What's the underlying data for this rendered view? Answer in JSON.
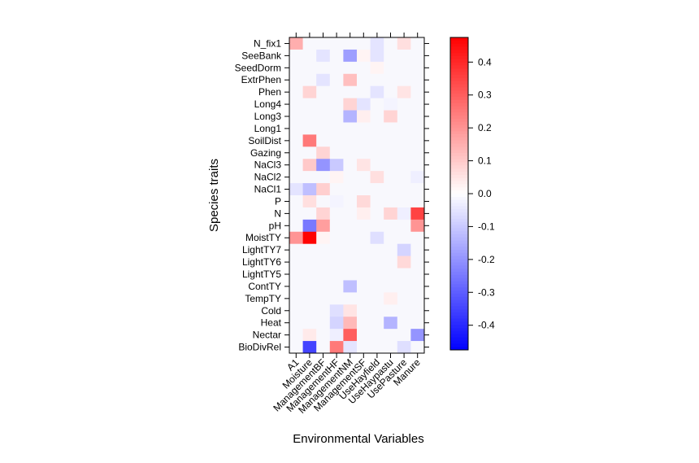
{
  "chart_data": {
    "type": "heatmap",
    "title": "",
    "xlabel": "Environmental Variables",
    "ylabel": "Species traits",
    "x_categories": [
      "A1",
      "Moisture",
      "ManagementBF",
      "ManagementHF",
      "ManagementNM",
      "ManagementSF",
      "UseHayfield",
      "UseHaypastu",
      "UsePasture",
      "Manure"
    ],
    "y_categories": [
      "N_fix1",
      "SeeBank",
      "SeedDorm",
      "ExtrPhen",
      "Phen",
      "Long4",
      "Long3",
      "Long1",
      "SoilDist",
      "Gazing",
      "NaCl3",
      "NaCl2",
      "NaCl1",
      "P",
      "N",
      "pH",
      "MoistTY",
      "LightTY7",
      "LightTY6",
      "LightTY5",
      "ContTY",
      "TempTY",
      "Cold",
      "Heat",
      "Nectar",
      "BioDivRel"
    ],
    "zlim": [
      -0.475,
      0.475
    ],
    "colorbar_ticks": [
      0.4,
      0.3,
      0.2,
      0.1,
      0.0,
      -0.1,
      -0.2,
      -0.3,
      -0.4
    ],
    "colorbar_tick_labels": [
      "0.4",
      "0.3",
      "0.2",
      "0.1",
      "0.0",
      "-0.1",
      "-0.2",
      "-0.3",
      "-0.4"
    ],
    "colors": {
      "low": "#0000ff",
      "mid": "#ffffff",
      "high": "#ff0000",
      "zero_cell": "#f8f8fd"
    },
    "values": [
      [
        0.15,
        0,
        0,
        0,
        0,
        0,
        -0.05,
        0,
        0.06,
        0
      ],
      [
        0,
        0,
        -0.05,
        0,
        -0.18,
        0.02,
        -0.05,
        0,
        0,
        0
      ],
      [
        0,
        0,
        0,
        0,
        0,
        0,
        0.02,
        0,
        0,
        0
      ],
      [
        0,
        0,
        -0.05,
        0,
        0.12,
        0,
        0,
        0,
        0,
        0
      ],
      [
        0,
        0.08,
        0,
        0,
        0,
        0,
        -0.05,
        0,
        0.05,
        0
      ],
      [
        0,
        0,
        0,
        0,
        0.08,
        -0.05,
        0,
        -0.02,
        0,
        0
      ],
      [
        0,
        0,
        0,
        0,
        -0.14,
        0.03,
        0,
        0.08,
        0,
        0
      ],
      [
        0,
        0,
        0,
        0,
        0,
        0,
        0,
        0,
        0,
        0
      ],
      [
        0,
        0.25,
        0,
        0,
        0,
        0,
        0,
        0,
        0,
        0
      ],
      [
        0,
        0,
        0.08,
        0,
        0,
        0,
        0,
        0,
        0,
        0
      ],
      [
        0,
        0.1,
        -0.2,
        -0.1,
        0,
        0.05,
        0,
        0,
        0,
        0
      ],
      [
        0,
        0,
        0,
        0.02,
        0,
        0,
        0.06,
        0,
        0,
        -0.03
      ],
      [
        -0.05,
        -0.12,
        0.09,
        0,
        0,
        0,
        0,
        0,
        0,
        0
      ],
      [
        0,
        0.06,
        0,
        -0.02,
        0,
        0.07,
        0,
        0,
        0,
        0
      ],
      [
        0,
        0,
        0.08,
        0,
        0,
        0.03,
        0,
        0.08,
        -0.03,
        0.35
      ],
      [
        0,
        -0.25,
        0.18,
        0,
        0,
        0,
        0,
        0,
        0,
        0.2
      ],
      [
        0.2,
        0.47,
        0.02,
        0,
        0,
        0,
        -0.06,
        0,
        0,
        0
      ],
      [
        0,
        0,
        0,
        0,
        0,
        0,
        0,
        0,
        -0.08,
        0
      ],
      [
        0,
        0,
        0,
        0,
        0,
        0,
        0,
        0,
        0.07,
        0
      ],
      [
        0,
        0,
        0,
        0,
        0,
        0,
        0,
        0,
        0,
        0
      ],
      [
        0,
        0,
        0,
        0,
        -0.12,
        0,
        0,
        0,
        0,
        0
      ],
      [
        0,
        0,
        0,
        0,
        0,
        0,
        0,
        0.03,
        0,
        0
      ],
      [
        0,
        0,
        0,
        -0.06,
        0.05,
        0,
        0,
        0,
        0,
        0
      ],
      [
        0,
        0,
        0,
        -0.08,
        0.13,
        0,
        0,
        -0.14,
        0,
        0
      ],
      [
        0,
        0.04,
        0,
        -0.03,
        0.3,
        0,
        0,
        0,
        0,
        -0.2
      ],
      [
        0,
        -0.35,
        0,
        0.25,
        -0.05,
        0,
        0,
        0,
        -0.06,
        0
      ]
    ]
  }
}
